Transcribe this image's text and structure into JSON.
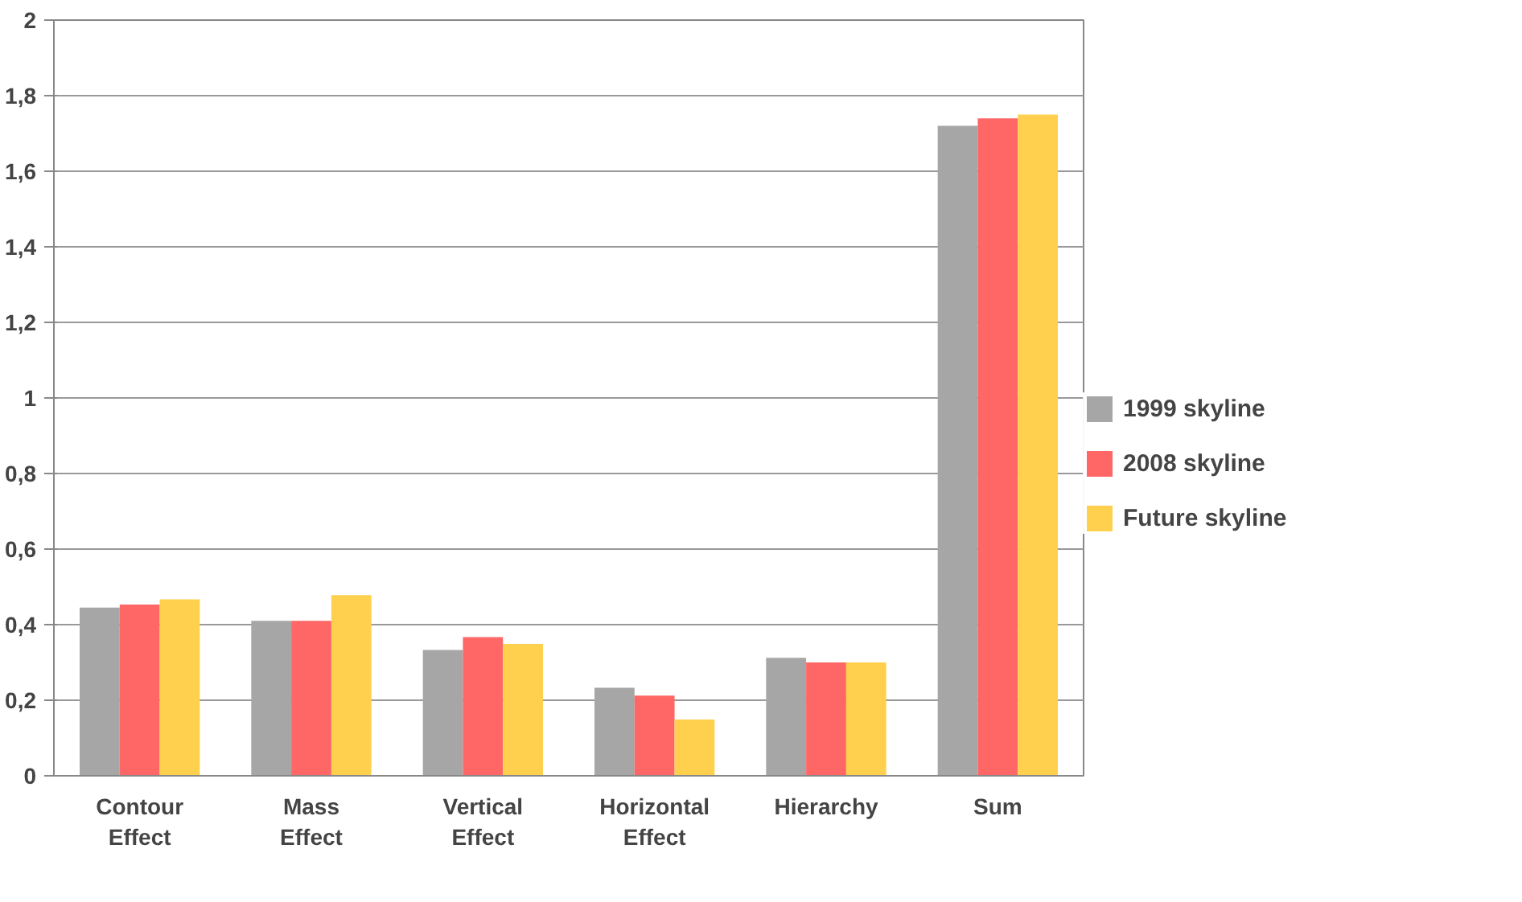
{
  "chart_data": {
    "type": "bar",
    "categories": [
      "Contour\nEffect",
      "Mass\nEffect",
      "Vertical\nEffect",
      "Horizontal\nEffect",
      "Hierarchy",
      "Sum"
    ],
    "series": [
      {
        "name": "1999 skyline",
        "color": "#a6a6a6",
        "values": [
          0.445,
          0.41,
          0.333,
          0.233,
          0.312,
          1.72
        ]
      },
      {
        "name": "2008 skyline",
        "color": "#ff6666",
        "values": [
          0.453,
          0.41,
          0.367,
          0.212,
          0.3,
          1.74
        ]
      },
      {
        "name": "Future skyline",
        "color": "#ffd04d",
        "values": [
          0.467,
          0.478,
          0.349,
          0.149,
          0.3,
          1.75
        ]
      }
    ],
    "ylim": [
      0,
      2
    ],
    "yticks": [
      0,
      {
        "value": 0.2,
        "label": "0,2"
      },
      {
        "value": 0.4,
        "label": "0,4"
      },
      {
        "value": 0.6,
        "label": "0,6"
      },
      {
        "value": 0.8,
        "label": "0,8"
      },
      1,
      {
        "value": 1.2,
        "label": "1,2"
      },
      {
        "value": 1.4,
        "label": "1,4"
      },
      {
        "value": 1.6,
        "label": "1,6"
      },
      {
        "value": 1.8,
        "label": "1,8"
      },
      2
    ],
    "grid": "y",
    "legend": "right"
  }
}
